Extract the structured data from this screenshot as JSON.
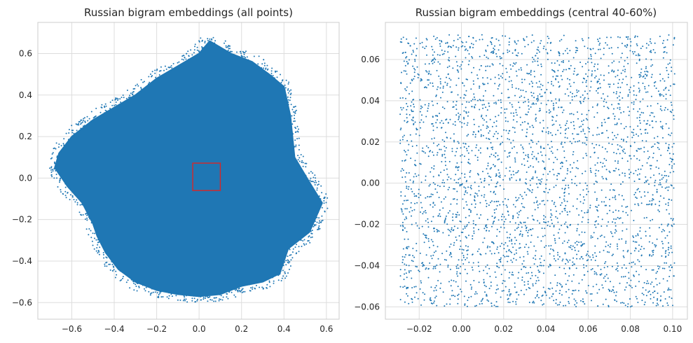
{
  "chart_data": [
    {
      "type": "scatter",
      "title": "Russian bigram embeddings (all points)",
      "xlabel": "",
      "ylabel": "",
      "xlim": [
        -0.76,
        0.66
      ],
      "ylim": [
        -0.68,
        0.75
      ],
      "xticks": [
        -0.6,
        -0.4,
        -0.2,
        0.0,
        0.2,
        0.4,
        0.6
      ],
      "xtick_labels": [
        "−0.6",
        "−0.4",
        "−0.2",
        "0.0",
        "0.2",
        "0.4",
        "0.6"
      ],
      "yticks": [
        -0.6,
        -0.4,
        -0.2,
        0.0,
        0.2,
        0.4,
        0.6
      ],
      "ytick_labels": [
        "−0.6",
        "−0.4",
        "−0.2",
        "0.0",
        "0.2",
        "0.4",
        "0.6"
      ],
      "grid": true,
      "point_color": "#1f77b4",
      "cloud_outline": [
        [
          -0.66,
          0.12
        ],
        [
          -0.6,
          0.2
        ],
        [
          -0.5,
          0.28
        ],
        [
          -0.4,
          0.34
        ],
        [
          -0.3,
          0.4
        ],
        [
          -0.2,
          0.48
        ],
        [
          -0.1,
          0.54
        ],
        [
          0.0,
          0.6
        ],
        [
          0.05,
          0.66
        ],
        [
          0.15,
          0.6
        ],
        [
          0.25,
          0.56
        ],
        [
          0.33,
          0.5
        ],
        [
          0.4,
          0.44
        ],
        [
          0.43,
          0.3
        ],
        [
          0.45,
          0.1
        ],
        [
          0.52,
          -0.02
        ],
        [
          0.58,
          -0.12
        ],
        [
          0.52,
          -0.26
        ],
        [
          0.42,
          -0.34
        ],
        [
          0.38,
          -0.46
        ],
        [
          0.3,
          -0.5
        ],
        [
          0.2,
          -0.52
        ],
        [
          0.1,
          -0.56
        ],
        [
          0.0,
          -0.57
        ],
        [
          -0.1,
          -0.56
        ],
        [
          -0.2,
          -0.54
        ],
        [
          -0.3,
          -0.5
        ],
        [
          -0.38,
          -0.44
        ],
        [
          -0.44,
          -0.36
        ],
        [
          -0.48,
          -0.28
        ],
        [
          -0.5,
          -0.22
        ],
        [
          -0.55,
          -0.12
        ],
        [
          -0.62,
          -0.04
        ],
        [
          -0.68,
          0.05
        ]
      ],
      "highlight_rect": {
        "x0": -0.03,
        "x1": 0.1,
        "y0": -0.06,
        "y1": 0.072,
        "color": "#d62728"
      }
    },
    {
      "type": "scatter",
      "title": "Russian bigram embeddings (central 40-60%)",
      "xlabel": "",
      "ylabel": "",
      "xlim": [
        -0.036,
        0.107
      ],
      "ylim": [
        -0.066,
        0.078
      ],
      "xticks": [
        -0.02,
        0.0,
        0.02,
        0.04,
        0.06,
        0.08,
        0.1
      ],
      "xtick_labels": [
        "−0.02",
        "0.00",
        "0.02",
        "0.04",
        "0.06",
        "0.08",
        "0.10"
      ],
      "yticks": [
        -0.06,
        -0.04,
        -0.02,
        0.0,
        0.02,
        0.04,
        0.06
      ],
      "ytick_labels": [
        "−0.06",
        "−0.04",
        "−0.02",
        "0.00",
        "0.02",
        "0.04",
        "0.06"
      ],
      "grid": true,
      "point_color": "#1f77b4",
      "x_range": [
        -0.029,
        0.101
      ],
      "y_range": [
        -0.06,
        0.072
      ]
    }
  ]
}
